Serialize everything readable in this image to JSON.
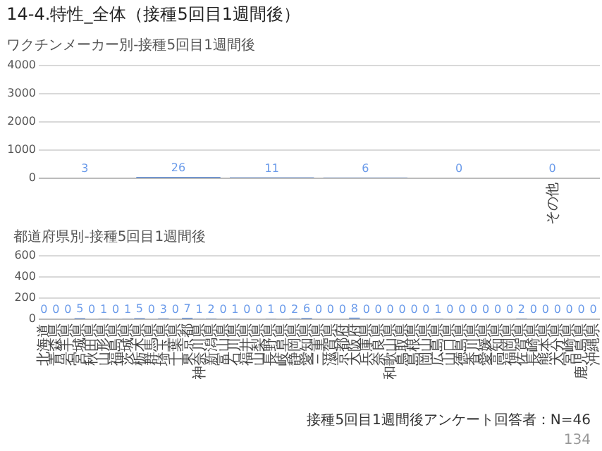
{
  "chart_data": [
    {
      "type": "bar",
      "title": "14-4.特性_全体（接種5回目1週間後）",
      "subtitle": "ワクチンメーカー別-接種5回目1週間後",
      "categories": [
        null,
        null,
        null,
        null,
        null,
        "その他"
      ],
      "series": [
        {
          "color": "#4a80d8",
          "values": [
            3,
            26,
            11,
            6,
            0,
            0
          ]
        }
      ],
      "ylim": [
        0,
        4000
      ],
      "yticks": [
        0,
        1000,
        2000,
        3000,
        4000
      ],
      "grid": "y",
      "data_labels": true
    },
    {
      "type": "bar",
      "title": "都道府県別-接種5回目1週間後",
      "categories": [
        "北海道",
        "青森県",
        "岩手県",
        "宮城県",
        "秋田県",
        "山形県",
        "福島県",
        "茨城県",
        "栃木県",
        "群馬県",
        "埼玉県",
        "千葉県",
        "東京都",
        "神奈川県",
        "新潟県",
        "富山県",
        "石川県",
        "福井県",
        "山梨県",
        "長野県",
        "岐阜県",
        "静岡県",
        "愛知県",
        "三重県",
        "滋賀県",
        "京都府",
        "大阪府",
        "兵庫県",
        "奈良県",
        "和歌山県",
        "鳥取県",
        "島根県",
        "岡山県",
        "広島県",
        "山口県",
        "徳島県",
        "香川県",
        "愛媛県",
        "高知県",
        "福岡県",
        "佐賀県",
        "長崎県",
        "熊本県",
        "大分県",
        "宮崎県",
        "鹿児島県",
        "沖縄県"
      ],
      "series": [
        {
          "color": "#4a80d8",
          "values": [
            0,
            0,
            0,
            5,
            0,
            1,
            0,
            1,
            5,
            0,
            3,
            0,
            7,
            1,
            2,
            0,
            1,
            0,
            0,
            1,
            0,
            2,
            6,
            0,
            0,
            0,
            8,
            0,
            0,
            0,
            0,
            0,
            0,
            1,
            0,
            0,
            0,
            0,
            0,
            0,
            2,
            0,
            0,
            0,
            0,
            0,
            0
          ]
        }
      ],
      "ylim": [
        0,
        600
      ],
      "yticks": [
        0,
        200,
        400,
        600
      ],
      "grid": "y",
      "data_labels": true,
      "annotations": [
        "接種5回目1週間後アンケート回答者：N=46",
        "134"
      ]
    }
  ]
}
